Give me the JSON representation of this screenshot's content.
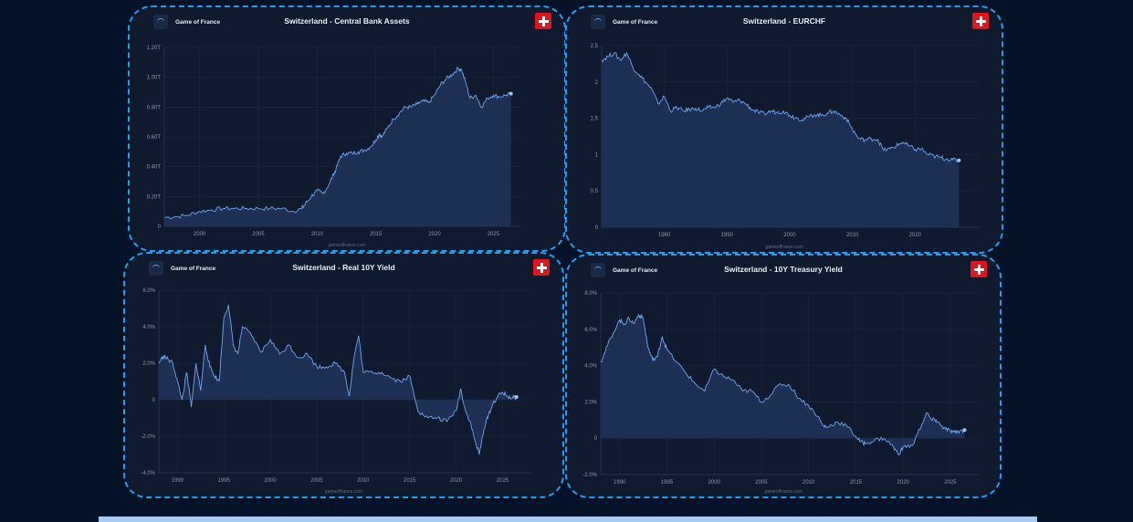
{
  "brand": {
    "name": "Game of France"
  },
  "footer": {
    "text": "gameoffrance.com"
  },
  "colors": {
    "line": "#6ea6ee",
    "area": "#20355a",
    "grid": "#1c2840",
    "panel_bg": "#101a2e",
    "page_bg": "#041327",
    "border": "#1e9ff0",
    "flag_red": "#e3141b"
  },
  "chart_data": [
    {
      "type": "area",
      "title": "Switzerland - Central Bank Assets",
      "x_ticks": [
        "2000",
        "2005",
        "2010",
        "2015",
        "2020",
        "2025"
      ],
      "y_ticks": [
        "0",
        "0.20T",
        "0.40T",
        "0.60T",
        "0.80T",
        "1.00T",
        "1.20T"
      ],
      "xlim": [
        1997,
        2027.3
      ],
      "ylim": [
        0,
        1.2
      ],
      "x": [
        1997,
        1998,
        1999,
        2000,
        2001,
        2002,
        2003,
        2004,
        2005,
        2006,
        2007,
        2008,
        2008.7,
        2009,
        2009.5,
        2010,
        2010.5,
        2011,
        2011.4,
        2011.6,
        2012,
        2012.5,
        2013,
        2013.5,
        2014,
        2014.5,
        2015,
        2015.3,
        2015.5,
        2016,
        2016.5,
        2017,
        2017.5,
        2018,
        2018.5,
        2019,
        2019.5,
        2020,
        2020.5,
        2021,
        2021.5,
        2022,
        2022.3,
        2022.7,
        2023,
        2023.5,
        2024,
        2024.5,
        2025,
        2025.5,
        2026.1,
        2026.5
      ],
      "y": [
        0.06,
        0.065,
        0.075,
        0.1,
        0.11,
        0.12,
        0.12,
        0.12,
        0.12,
        0.12,
        0.12,
        0.1,
        0.12,
        0.15,
        0.2,
        0.24,
        0.22,
        0.28,
        0.35,
        0.38,
        0.47,
        0.49,
        0.49,
        0.5,
        0.51,
        0.53,
        0.58,
        0.62,
        0.6,
        0.66,
        0.72,
        0.76,
        0.8,
        0.8,
        0.82,
        0.84,
        0.83,
        0.88,
        0.95,
        0.99,
        1.02,
        1.06,
        1.05,
        0.95,
        0.86,
        0.88,
        0.8,
        0.86,
        0.88,
        0.87,
        0.88,
        0.89
      ],
      "end_x": 2026.5
    },
    {
      "type": "area",
      "title": "Switzerland - EURCHF",
      "x_ticks": [
        "1980",
        "1990",
        "2000",
        "2010",
        "2020"
      ],
      "y_ticks": [
        "0",
        "0.5",
        "1",
        "1.5",
        "2",
        "2.5"
      ],
      "xlim": [
        1970,
        2030.3
      ],
      "ylim": [
        0,
        2.5
      ],
      "x": [
        1970,
        1971,
        1972,
        1973,
        1974,
        1975,
        1976,
        1977,
        1978,
        1979,
        1980,
        1981,
        1982,
        1983,
        1984,
        1985,
        1986,
        1987,
        1988,
        1989,
        1990,
        1991,
        1992,
        1993,
        1994,
        1995,
        1996,
        1997,
        1998,
        1999,
        2000,
        2001,
        2002,
        2003,
        2004,
        2005,
        2006,
        2007,
        2008,
        2009,
        2010,
        2011,
        2012,
        2013,
        2014,
        2015,
        2016,
        2017,
        2018,
        2019,
        2020,
        2021,
        2022,
        2023,
        2024,
        2025,
        2026,
        2027
      ],
      "y": [
        2.3,
        2.35,
        2.4,
        2.3,
        2.4,
        2.2,
        2.1,
        2.0,
        1.9,
        1.7,
        1.8,
        1.6,
        1.65,
        1.6,
        1.62,
        1.64,
        1.6,
        1.65,
        1.65,
        1.7,
        1.78,
        1.72,
        1.75,
        1.7,
        1.62,
        1.58,
        1.56,
        1.6,
        1.58,
        1.6,
        1.54,
        1.51,
        1.48,
        1.52,
        1.55,
        1.54,
        1.57,
        1.6,
        1.55,
        1.5,
        1.35,
        1.22,
        1.2,
        1.22,
        1.21,
        1.06,
        1.08,
        1.12,
        1.17,
        1.12,
        1.07,
        1.08,
        1.0,
        0.98,
        0.96,
        0.94,
        0.93,
        0.92
      ],
      "end_x": 2027
    },
    {
      "type": "area",
      "title": "Switzerland - Real 10Y Yield",
      "x_ticks": [
        "1990",
        "1995",
        "2000",
        "2005",
        "2010",
        "2015",
        "2020",
        "2025"
      ],
      "y_ticks": [
        "-4.0%",
        "-2.0%",
        "0",
        "2.0%",
        "4.0%",
        "6.0%"
      ],
      "xlim": [
        1988,
        2028
      ],
      "ylim": [
        -4,
        6
      ],
      "x": [
        1988,
        1988.5,
        1989,
        1989.5,
        1990,
        1990.5,
        1991,
        1991.5,
        1992,
        1992.5,
        1993,
        1993.5,
        1994,
        1994.5,
        1995,
        1995.5,
        1996,
        1996.5,
        1997,
        1998,
        1999,
        2000,
        2001,
        2002,
        2003,
        2004,
        2005,
        2006,
        2007,
        2008,
        2008.5,
        2009,
        2009.5,
        2010,
        2011,
        2012,
        2013,
        2014,
        2015,
        2015.5,
        2016,
        2017,
        2018,
        2019,
        2020,
        2020.5,
        2021,
        2021.5,
        2022,
        2022.5,
        2023,
        2023.5,
        2024,
        2024.5,
        2025,
        2025.5,
        2026,
        2026.5
      ],
      "y": [
        2.0,
        2.4,
        2.2,
        2.0,
        1.0,
        0.0,
        1.5,
        -0.4,
        2.0,
        0.5,
        3.0,
        1.8,
        1.3,
        1.0,
        4.5,
        5.2,
        3.0,
        2.5,
        4.0,
        3.5,
        2.6,
        3.3,
        2.5,
        3.0,
        2.3,
        2.5,
        1.8,
        1.8,
        2.0,
        1.5,
        0.2,
        2.3,
        3.5,
        1.5,
        1.5,
        1.5,
        1.2,
        1.0,
        1.3,
        0.2,
        -0.7,
        -1.0,
        -1.0,
        -1.2,
        -0.6,
        0.6,
        -0.6,
        -1.2,
        -2.2,
        -3.0,
        -1.6,
        -0.8,
        -0.2,
        0.2,
        0.4,
        0.2,
        0.1,
        0.15
      ],
      "end_x": 2026.5
    },
    {
      "type": "area",
      "title": "Switzerland - 10Y Treasury Yield",
      "x_ticks": [
        "1990",
        "1995",
        "2000",
        "2005",
        "2010",
        "2015",
        "2020",
        "2025"
      ],
      "y_ticks": [
        "-2.0%",
        "0",
        "2.0%",
        "4.0%",
        "6.0%",
        "8.0%"
      ],
      "xlim": [
        1988,
        2028
      ],
      "ylim": [
        -2,
        8
      ],
      "x": [
        1988,
        1988.5,
        1989,
        1990,
        1990.5,
        1991,
        1991.5,
        1992,
        1992.5,
        1993,
        1993.5,
        1994,
        1994.5,
        1995,
        1996,
        1997,
        1998,
        1999,
        2000,
        2001,
        2002,
        2003,
        2004,
        2005,
        2006,
        2007,
        2008,
        2009,
        2010,
        2011,
        2011.5,
        2012,
        2013,
        2014,
        2015,
        2015.5,
        2016,
        2017,
        2018,
        2019,
        2019.5,
        2020,
        2021,
        2022,
        2022.5,
        2023,
        2023.5,
        2024,
        2024.5,
        2025,
        2025.5,
        2026,
        2026.5
      ],
      "y": [
        4.2,
        4.8,
        5.5,
        6.5,
        6.3,
        6.6,
        6.3,
        6.8,
        6.6,
        5.0,
        4.3,
        4.5,
        5.6,
        4.9,
        4.2,
        3.6,
        3.0,
        2.6,
        3.8,
        3.4,
        3.2,
        2.6,
        2.6,
        2.0,
        2.4,
        3.0,
        2.9,
        2.2,
        1.8,
        1.2,
        0.7,
        0.6,
        0.9,
        0.7,
        0.1,
        -0.2,
        -0.3,
        -0.1,
        0.0,
        -0.5,
        -0.9,
        -0.5,
        -0.4,
        0.8,
        1.4,
        1.0,
        1.0,
        0.7,
        0.5,
        0.4,
        0.3,
        0.4,
        0.45
      ],
      "end_x": 2026.5
    }
  ]
}
